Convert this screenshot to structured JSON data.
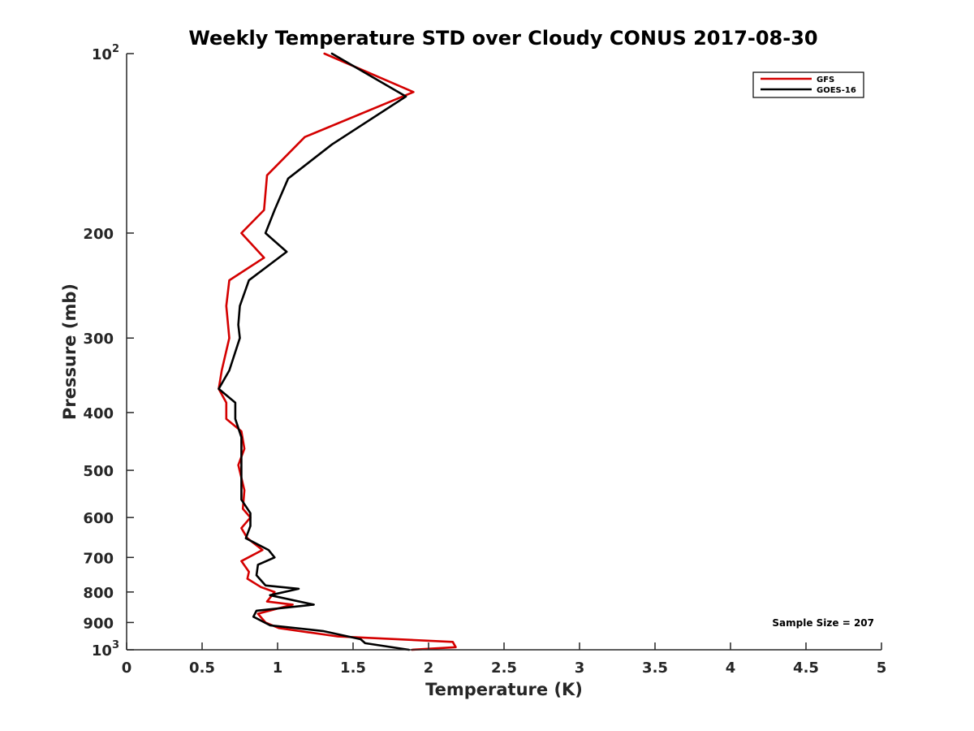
{
  "chart_data": {
    "type": "line",
    "title": "Weekly Temperature STD over Cloudy CONUS 2017-08-30",
    "xlabel": "Temperature (K)",
    "ylabel": "Pressure (mb)",
    "xlim": [
      0,
      5
    ],
    "ylim": [
      100,
      1000
    ],
    "y_scale": "log",
    "y_reversed": true,
    "grid": false,
    "legend_position": "top-right",
    "x_ticks": [
      "0",
      "0.5",
      "1",
      "1.5",
      "2",
      "2.5",
      "3",
      "3.5",
      "4",
      "4.5",
      "5"
    ],
    "x_tick_values": [
      0,
      0.5,
      1,
      1.5,
      2,
      2.5,
      3,
      3.5,
      4,
      4.5,
      5
    ],
    "y_ticks": [
      {
        "value": 100,
        "base": "10",
        "exp": "2"
      },
      {
        "value": 200,
        "label": "200"
      },
      {
        "value": 300,
        "label": "300"
      },
      {
        "value": 400,
        "label": "400"
      },
      {
        "value": 500,
        "label": "500"
      },
      {
        "value": 600,
        "label": "600"
      },
      {
        "value": 700,
        "label": "700"
      },
      {
        "value": 800,
        "label": "800"
      },
      {
        "value": 900,
        "label": "900"
      },
      {
        "value": 1000,
        "base": "10",
        "exp": "3"
      }
    ],
    "annotation": "Sample Size = 207",
    "series": [
      {
        "name": "GFS",
        "color": "#d40000",
        "points": [
          [
            1.31,
            100
          ],
          [
            1.9,
            116
          ],
          [
            1.18,
            138
          ],
          [
            0.93,
            160
          ],
          [
            0.91,
            183
          ],
          [
            0.76,
            200
          ],
          [
            0.91,
            220
          ],
          [
            0.68,
            240
          ],
          [
            0.66,
            265
          ],
          [
            0.68,
            300
          ],
          [
            0.63,
            340
          ],
          [
            0.61,
            365
          ],
          [
            0.66,
            385
          ],
          [
            0.66,
            410
          ],
          [
            0.76,
            430
          ],
          [
            0.78,
            460
          ],
          [
            0.74,
            490
          ],
          [
            0.78,
            540
          ],
          [
            0.77,
            580
          ],
          [
            0.82,
            600
          ],
          [
            0.76,
            625
          ],
          [
            0.8,
            650
          ],
          [
            0.9,
            680
          ],
          [
            0.76,
            710
          ],
          [
            0.81,
            740
          ],
          [
            0.8,
            760
          ],
          [
            0.89,
            785
          ],
          [
            0.98,
            800
          ],
          [
            0.93,
            830
          ],
          [
            1.1,
            840
          ],
          [
            0.87,
            870
          ],
          [
            0.92,
            900
          ],
          [
            1.01,
            920
          ],
          [
            1.4,
            950
          ],
          [
            2.16,
            970
          ],
          [
            2.18,
            990
          ],
          [
            1.89,
            1000
          ]
        ]
      },
      {
        "name": "GOES-16",
        "color": "#000000",
        "points": [
          [
            1.36,
            100
          ],
          [
            1.85,
            118
          ],
          [
            1.36,
            142
          ],
          [
            1.07,
            162
          ],
          [
            0.98,
            183
          ],
          [
            0.92,
            200
          ],
          [
            1.06,
            215
          ],
          [
            0.81,
            240
          ],
          [
            0.75,
            265
          ],
          [
            0.74,
            285
          ],
          [
            0.75,
            300
          ],
          [
            0.68,
            340
          ],
          [
            0.61,
            365
          ],
          [
            0.72,
            385
          ],
          [
            0.72,
            410
          ],
          [
            0.76,
            440
          ],
          [
            0.76,
            480
          ],
          [
            0.76,
            520
          ],
          [
            0.76,
            560
          ],
          [
            0.82,
            590
          ],
          [
            0.82,
            620
          ],
          [
            0.79,
            650
          ],
          [
            0.94,
            680
          ],
          [
            0.98,
            700
          ],
          [
            0.87,
            720
          ],
          [
            0.86,
            750
          ],
          [
            0.92,
            780
          ],
          [
            1.14,
            790
          ],
          [
            0.95,
            810
          ],
          [
            1.24,
            840
          ],
          [
            0.86,
            860
          ],
          [
            0.84,
            880
          ],
          [
            0.95,
            910
          ],
          [
            1.3,
            930
          ],
          [
            1.55,
            960
          ],
          [
            1.58,
            975
          ],
          [
            1.87,
            1000
          ]
        ]
      }
    ]
  }
}
